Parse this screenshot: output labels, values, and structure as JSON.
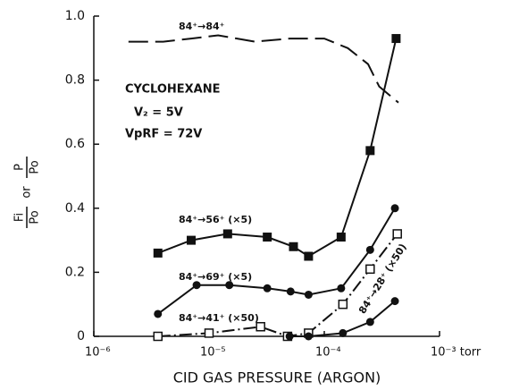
{
  "chart_data": {
    "type": "line",
    "xlabel": "CID GAS PRESSURE (ARGON)",
    "ylabel_parts": [
      "Fi",
      "Po",
      "or",
      "P",
      "Po"
    ],
    "annotations": [
      "CYCLOHEXANE",
      "V₂ = 5V",
      "VpRF = 72V"
    ],
    "xlog": true,
    "xlim": [
      1e-06,
      0.001
    ],
    "xticks": [
      {
        "value": 1e-06,
        "label": "10⁻⁶"
      },
      {
        "value": 1e-05,
        "label": "10⁻⁵"
      },
      {
        "value": 0.0001,
        "label": "10⁻⁴"
      },
      {
        "value": 0.001,
        "label": "10⁻³ torr"
      }
    ],
    "ylim": [
      0,
      1.0
    ],
    "yticks": [
      0,
      0.2,
      0.4,
      0.6,
      0.8,
      {
        "value": 1.0,
        "label": "1.0"
      }
    ],
    "series": [
      {
        "name": "84⁺→84⁺",
        "color": "#111111",
        "marker": "none",
        "style": "dashed",
        "x": [
          2e-06,
          4e-06,
          7e-06,
          1.2e-05,
          2.5e-05,
          5e-05,
          0.0001,
          0.00016,
          0.00024,
          0.0003,
          0.00044
        ],
        "values": [
          0.92,
          0.92,
          0.93,
          0.94,
          0.92,
          0.93,
          0.93,
          0.9,
          0.85,
          0.78,
          0.73
        ]
      },
      {
        "name": "84⁺→56⁺ (×5)",
        "color": "#111111",
        "marker": "square",
        "style": "solid",
        "x": [
          3.6e-06,
          7e-06,
          1.45e-05,
          3.2e-05,
          5.4e-05,
          7.3e-05,
          0.00014,
          0.00025,
          0.00042
        ],
        "values": [
          0.26,
          0.3,
          0.32,
          0.31,
          0.28,
          0.25,
          0.31,
          0.58,
          0.93
        ]
      },
      {
        "name": "84⁺→69⁺ (×5)",
        "color": "#111111",
        "marker": "circle",
        "style": "solid",
        "x": [
          3.6e-06,
          7.8e-06,
          1.5e-05,
          3.2e-05,
          5.1e-05,
          7.3e-05,
          0.00014,
          0.00025,
          0.00041
        ],
        "values": [
          0.07,
          0.16,
          0.16,
          0.15,
          0.14,
          0.13,
          0.15,
          0.27,
          0.4
        ]
      },
      {
        "name": "84⁺→41⁺ (×50)",
        "color": "#111111",
        "marker": "open-square",
        "style": "dashdot",
        "x": [
          3.6e-06,
          1e-05,
          2.8e-05,
          4.8e-05,
          7.3e-05,
          0.000145,
          0.00025,
          0.00043
        ],
        "values": [
          0.0,
          0.01,
          0.03,
          0.0,
          0.01,
          0.1,
          0.21,
          0.32
        ]
      },
      {
        "name": "84⁺→28⁺ (×50)",
        "color": "#111111",
        "marker": "circle",
        "style": "solid",
        "x": [
          5e-05,
          7.3e-05,
          0.000145,
          0.00025,
          0.00041
        ],
        "values": [
          0.0,
          0.0,
          0.01,
          0.045,
          0.11
        ]
      }
    ]
  }
}
